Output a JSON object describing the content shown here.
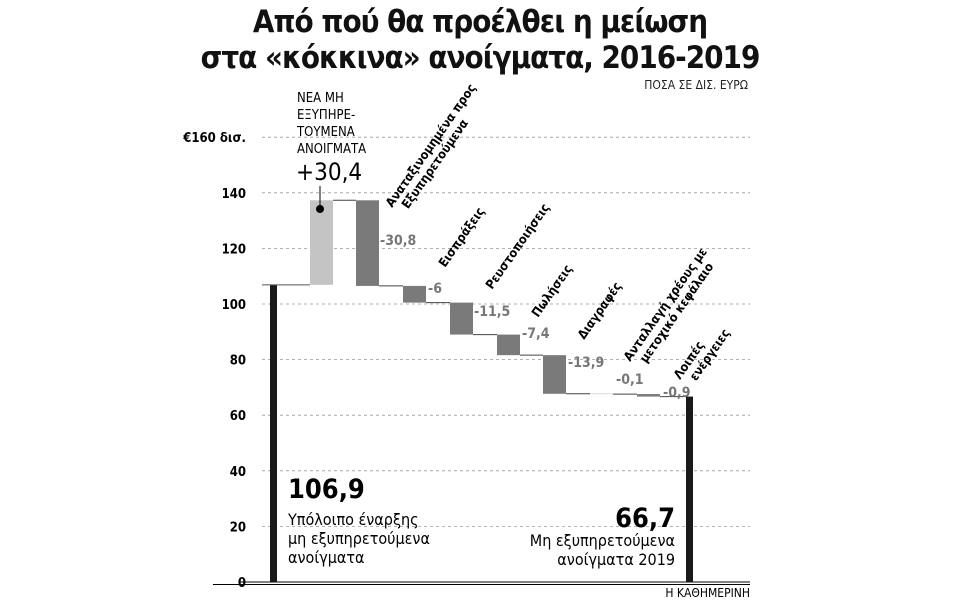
{
  "title_line1": "Από πού θα προέλθει η μείωση",
  "title_line2": "στα «κόκκινα» ανοίγματα, 2016-2019",
  "subtitle": "ΠΟΣΑ ΣΕ ΔΙΣ. ΕΥΡΩ",
  "footer": "Η ΚΑΘΗΜΕΡΙΝΗ",
  "chart_data": {
    "type": "waterfall",
    "ylim": [
      0,
      160
    ],
    "yticks": [
      "0",
      "20",
      "40",
      "60",
      "80",
      "100",
      "120",
      "140",
      "€160 δισ."
    ],
    "grid": true,
    "start": {
      "value": 106.9,
      "label": "106,9",
      "caption": [
        "Υπόλοιπο έναρξης",
        "μη εξυπηρετούμενα",
        "ανοίγματα"
      ]
    },
    "steps": [
      {
        "category": "ΝΕΑ ΜΗ ΕΞΥΠΗΡΕ- ΤΟΥΜΕΝΑ ΑΝΟΙΓΜΑΤΑ",
        "value": 30.4,
        "label": "+30,4"
      },
      {
        "category": "Αναταξινομημένα προς Εξυπηρετούμενα",
        "value": -30.8,
        "label": "-30,8"
      },
      {
        "category": "Εισπράξεις",
        "value": -6,
        "label": "-6"
      },
      {
        "category": "Ρευστοποιήσεις",
        "value": -11.5,
        "label": "-11,5"
      },
      {
        "category": "Πωλήσεις",
        "value": -7.4,
        "label": "-7,4"
      },
      {
        "category": "Διαγραφές",
        "value": -13.9,
        "label": "-13,9"
      },
      {
        "category": "Ανταλλαγή χρέους με μετοχικό κεφάλαιο",
        "value": -0.1,
        "label": "-0,1"
      },
      {
        "category": "Λοιπές ενέργειες",
        "value": -0.9,
        "label": "-0,9"
      }
    ],
    "end": {
      "value": 66.7,
      "label": "66,7",
      "caption": [
        "Μη εξυπηρετούμενα",
        "ανοίγματα 2019"
      ]
    },
    "colors": {
      "total": "#1a1a1a",
      "increase": "#c4c4c4",
      "decrease": "#7a7a7a"
    }
  }
}
